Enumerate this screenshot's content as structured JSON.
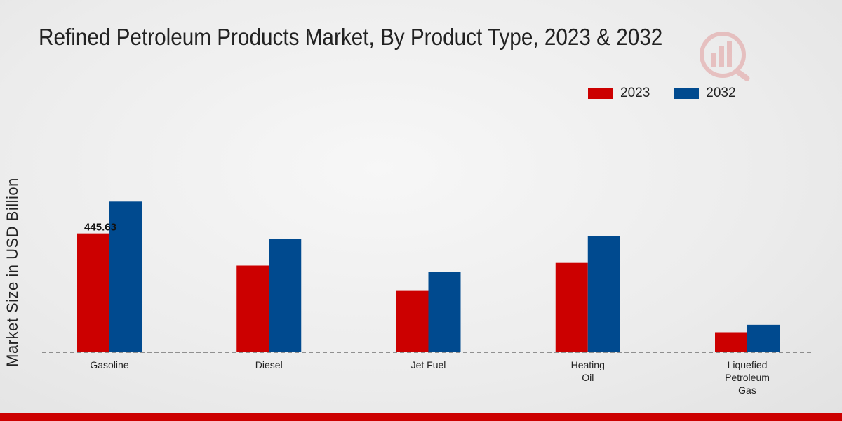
{
  "chart_data": {
    "type": "bar",
    "title": "Refined Petroleum Products Market, By Product Type, 2023 & 2032",
    "xlabel": "",
    "ylabel": "Market Size in USD Billion",
    "categories": [
      "Gasoline",
      "Diesel",
      "Jet Fuel",
      "Heating Oil",
      "Liquefied Petroleum Gas"
    ],
    "category_lines": [
      [
        "Gasoline"
      ],
      [
        "Diesel"
      ],
      [
        "Jet Fuel"
      ],
      [
        "Heating",
        "Oil"
      ],
      [
        "Liquefied",
        "Petroleum",
        "Gas"
      ]
    ],
    "series": [
      {
        "name": "2023",
        "color": "#cc0000",
        "values": [
          445.63,
          325,
          230,
          335,
          75
        ]
      },
      {
        "name": "2032",
        "color": "#004a8f",
        "values": [
          565,
          425,
          302,
          435,
          103
        ]
      }
    ],
    "data_labels": [
      {
        "series": 0,
        "index": 0,
        "text": "445.63"
      }
    ],
    "ylim": [
      0,
      900
    ],
    "legend": "top-right",
    "grid": false
  },
  "colors": {
    "accent_red": "#cc0000",
    "accent_blue": "#004a8f",
    "bottom_bar": "#cc0000"
  }
}
